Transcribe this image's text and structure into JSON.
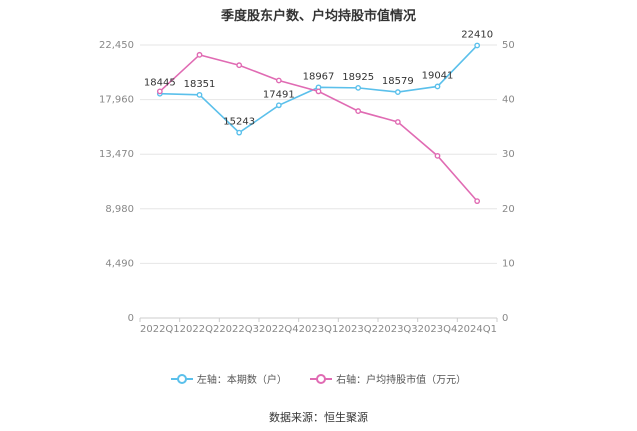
{
  "chart_data": {
    "type": "line",
    "title": "季度股东户数、户均持股市值情况",
    "categories": [
      "2022Q1",
      "2022Q2",
      "2022Q3",
      "2022Q4",
      "2023Q1",
      "2023Q2",
      "2023Q3",
      "2023Q4",
      "2024Q1"
    ],
    "left_axis": {
      "ylim": [
        0,
        22450
      ],
      "ticks": [
        "0",
        "4,490",
        "8,980",
        "13,470",
        "17,960",
        "22,450"
      ]
    },
    "right_axis": {
      "ylim": [
        0,
        50
      ],
      "ticks": [
        "0",
        "10",
        "20",
        "30",
        "40",
        "50"
      ]
    },
    "series": [
      {
        "name": "左轴：本期数（户）",
        "axis": "left",
        "color": "#5bc0eb",
        "values": [
          18445,
          18351,
          15243,
          17491,
          18967,
          18925,
          18579,
          19041,
          22410
        ],
        "labels": [
          "18445",
          "18351",
          "15243",
          "17491",
          "18967",
          "18925",
          "18579",
          "19041",
          "22410"
        ]
      },
      {
        "name": "右轴：户均持股市值（万元）",
        "axis": "right",
        "color": "#e06bb3",
        "values": [
          41.5,
          48.2,
          46.3,
          43.5,
          41.5,
          37.9,
          35.9,
          29.7,
          21.4
        ]
      }
    ],
    "grid": true,
    "legend_position": "bottom"
  },
  "source": "数据来源：恒生聚源"
}
